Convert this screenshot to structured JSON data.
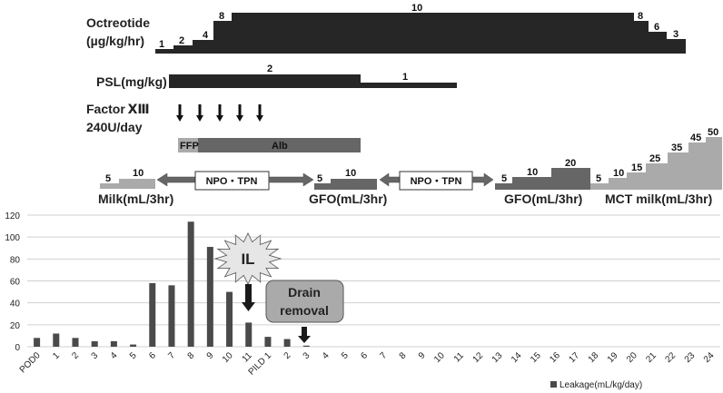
{
  "octreotide": {
    "label_line1": "Octreotide",
    "label_line2": "(µg/kg/hr)",
    "steps": [
      "1",
      "2",
      "4",
      "8",
      "10",
      "8",
      "6",
      "3"
    ]
  },
  "psl": {
    "label": "PSL(mg/kg)",
    "doses": [
      "2",
      "1"
    ]
  },
  "factor": {
    "label_line1": "Factor ⅩⅢ",
    "label_line2": "240U/day"
  },
  "transfusion": {
    "ffp": "FFP",
    "alb": "Alb"
  },
  "nutrition": {
    "milk": {
      "label": "Milk(mL/3hr)",
      "steps": [
        "5",
        "10"
      ]
    },
    "npo1": "NPO・TPN",
    "gfo1": {
      "label": "GFO(mL/3hr)",
      "steps": [
        "5",
        "10"
      ]
    },
    "npo2": "NPO・TPN",
    "gfo2": {
      "label": "GFO(mL/3hr)",
      "steps": [
        "5",
        "10",
        "20"
      ]
    },
    "mct": {
      "label": "MCT milk(mL/3hr)",
      "steps": [
        "5",
        "10",
        "15",
        "25",
        "35",
        "45",
        "50"
      ]
    }
  },
  "annotations": {
    "il": "IL",
    "drain_line1": "Drain",
    "drain_line2": "removal"
  },
  "colors": {
    "bar": "#4a4a4a",
    "dark": "#262626",
    "mid": "#666666",
    "light": "#aaaaaa"
  },
  "chart_data": {
    "type": "bar",
    "title": "",
    "xlabel": "",
    "ylabel": "",
    "ylim": [
      0,
      120
    ],
    "yticks": [
      "0",
      "20",
      "40",
      "60",
      "80",
      "100",
      "120"
    ],
    "grid": true,
    "legend": {
      "position": "bottom-right",
      "entries": [
        "Leakage(mL/kg/day)"
      ]
    },
    "categories": [
      "POD0",
      "1",
      "2",
      "3",
      "4",
      "5",
      "6",
      "7",
      "8",
      "9",
      "10",
      "11",
      "PILD 1",
      "2",
      "3",
      "4",
      "5",
      "6",
      "7",
      "8",
      "9",
      "10",
      "11",
      "12",
      "13",
      "14",
      "15",
      "16",
      "17",
      "18",
      "19",
      "20",
      "21",
      "22",
      "23",
      "24"
    ],
    "series": [
      {
        "name": "Leakage(mL/kg/day)",
        "values": [
          8,
          12,
          8,
          5,
          5,
          2,
          58,
          56,
          114,
          91,
          50,
          22,
          9,
          7,
          1,
          0,
          0,
          0,
          0,
          0,
          0,
          0,
          0,
          0,
          0,
          0,
          0,
          0,
          0,
          0,
          0,
          0,
          0,
          0,
          0,
          0
        ]
      }
    ]
  }
}
